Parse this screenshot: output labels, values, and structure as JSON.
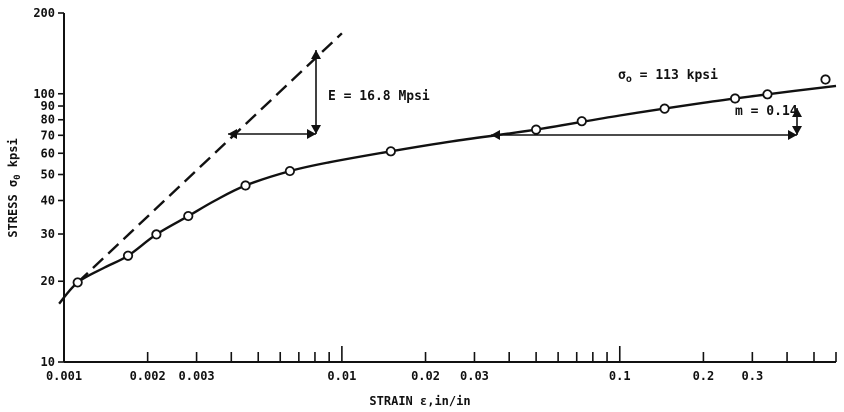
{
  "chart_data": {
    "type": "line",
    "xscale": "log",
    "yscale": "log",
    "xlim": [
      0.001,
      0.6
    ],
    "ylim": [
      10,
      200
    ],
    "xlabel_text": "STRAIN  ε,in/in",
    "ylabel_text": "STRESS  σ",
    "ylabel_subscript": "0",
    "ylabel_unit": "kpsi",
    "x_tick_labels": [
      {
        "value": 0.001,
        "label": "0.001"
      },
      {
        "value": 0.002,
        "label": "0.002"
      },
      {
        "value": 0.003,
        "label": "0.003"
      },
      {
        "value": 0.01,
        "label": "0.01"
      },
      {
        "value": 0.02,
        "label": "0.02"
      },
      {
        "value": 0.03,
        "label": "0.03"
      },
      {
        "value": 0.1,
        "label": "0.1"
      },
      {
        "value": 0.2,
        "label": "0.2"
      },
      {
        "value": 0.3,
        "label": "0.3"
      }
    ],
    "y_tick_labels": [
      {
        "value": 10,
        "label": "10"
      },
      {
        "value": 20,
        "label": "20"
      },
      {
        "value": 30,
        "label": "30"
      },
      {
        "value": 40,
        "label": "40"
      },
      {
        "value": 50,
        "label": "50"
      },
      {
        "value": 60,
        "label": "60"
      },
      {
        "value": 70,
        "label": "70"
      },
      {
        "value": 80,
        "label": "80"
      },
      {
        "value": 90,
        "label": "90"
      },
      {
        "value": 100,
        "label": "100"
      },
      {
        "value": 200,
        "label": "200"
      }
    ],
    "data_points": [
      {
        "x": 0.00112,
        "y": 19.8
      },
      {
        "x": 0.0017,
        "y": 24.9
      },
      {
        "x": 0.00215,
        "y": 29.9
      },
      {
        "x": 0.0028,
        "y": 35.0
      },
      {
        "x": 0.0045,
        "y": 45.5
      },
      {
        "x": 0.0065,
        "y": 51.5
      },
      {
        "x": 0.015,
        "y": 61.0
      },
      {
        "x": 0.05,
        "y": 73.5
      },
      {
        "x": 0.073,
        "y": 79.0
      },
      {
        "x": 0.145,
        "y": 88.0
      },
      {
        "x": 0.26,
        "y": 96.0
      },
      {
        "x": 0.34,
        "y": 99.5
      }
    ],
    "fit_curve": [
      {
        "x": 0.00096,
        "y": 16.5
      },
      {
        "x": 0.00112,
        "y": 19.8
      },
      {
        "x": 0.0014,
        "y": 22.5
      },
      {
        "x": 0.0017,
        "y": 24.9
      },
      {
        "x": 0.00215,
        "y": 29.9
      },
      {
        "x": 0.0028,
        "y": 35.0
      },
      {
        "x": 0.0035,
        "y": 40.0
      },
      {
        "x": 0.0045,
        "y": 45.5
      },
      {
        "x": 0.0065,
        "y": 51.5
      },
      {
        "x": 0.009,
        "y": 55.5
      },
      {
        "x": 0.015,
        "y": 61.0
      },
      {
        "x": 0.025,
        "y": 66.5
      },
      {
        "x": 0.05,
        "y": 73.5
      },
      {
        "x": 0.1,
        "y": 83.0
      },
      {
        "x": 0.2,
        "y": 92.5
      },
      {
        "x": 0.34,
        "y": 99.5
      },
      {
        "x": 0.6,
        "y": 107.0
      }
    ],
    "elastic_line": [
      {
        "x": 0.00112,
        "y": 19.8
      },
      {
        "x": 0.01,
        "y": 168.0
      }
    ],
    "sigma0_point": {
      "x": 0.55,
      "y": 113
    },
    "annotations": {
      "modulus": "E = 16.8 Mpsi",
      "hardening_exponent": "m = 0.14",
      "sigma0_prefix": "σ",
      "sigma0_subscript": "o",
      "sigma0_value": " = 113 kpsi"
    },
    "grid": false
  }
}
